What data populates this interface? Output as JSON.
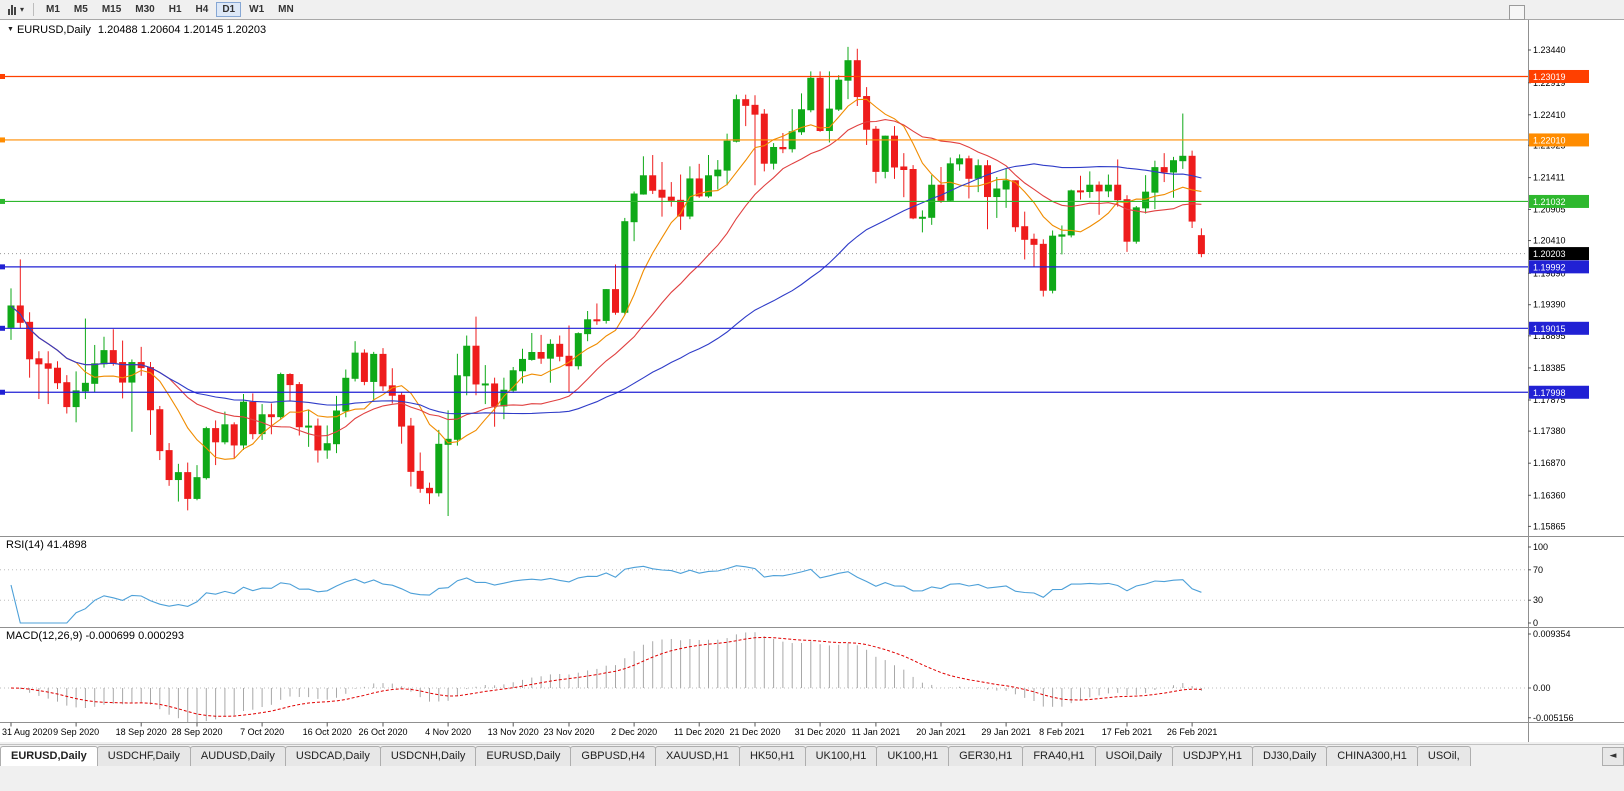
{
  "toolbar": {
    "chart_type_caret": "▾",
    "timeframes": [
      "M1",
      "M5",
      "M15",
      "M30",
      "H1",
      "H4",
      "D1",
      "W1",
      "MN"
    ],
    "active_timeframe": "D1"
  },
  "icons": {
    "title_marker": "▼",
    "tabs_scroll": "◄"
  },
  "chart": {
    "symbol_period": "EURUSD,Daily",
    "ohlc_text": "1.20488 1.20604 1.20145 1.20203",
    "colors": {
      "bull": "#0fa918",
      "bear": "#ee1c1c",
      "background": "#ffffff"
    },
    "price_axis_labels": [
      "1.23440",
      "1.22919",
      "1.22410",
      "1.21925",
      "1.21411",
      "1.20905",
      "1.20410",
      "1.19890",
      "1.19390",
      "1.18895",
      "1.18385",
      "1.17875",
      "1.17380",
      "1.16870",
      "1.16360",
      "1.15865"
    ],
    "horizontal_levels": [
      {
        "label": "1.23019",
        "color": "#ff4000"
      },
      {
        "label": "1.22010",
        "color": "#ff8c00"
      },
      {
        "label": "1.21032",
        "color": "#2eb82e"
      },
      {
        "label": "1.19992",
        "color": "#2121d4"
      },
      {
        "label": "1.19015",
        "color": "#2121d4"
      },
      {
        "label": "1.17998",
        "color": "#2121d4"
      }
    ],
    "bid": {
      "label": "1.20203",
      "color": "#000000"
    },
    "date_labels": [
      {
        "label": "31 Aug 2020",
        "index": 0
      },
      {
        "label": "9 Sep 2020",
        "index": 7
      },
      {
        "label": "18 Sep 2020",
        "index": 14
      },
      {
        "label": "28 Sep 2020",
        "index": 20
      },
      {
        "label": "7 Oct 2020",
        "index": 27
      },
      {
        "label": "16 Oct 2020",
        "index": 34
      },
      {
        "label": "26 Oct 2020",
        "index": 40
      },
      {
        "label": "4 Nov 2020",
        "index": 47
      },
      {
        "label": "13 Nov 2020",
        "index": 54
      },
      {
        "label": "23 Nov 2020",
        "index": 60
      },
      {
        "label": "2 Dec 2020",
        "index": 67
      },
      {
        "label": "11 Dec 2020",
        "index": 74
      },
      {
        "label": "21 Dec 2020",
        "index": 80
      },
      {
        "label": "31 Dec 2020",
        "index": 87
      },
      {
        "label": "11 Jan 2021",
        "index": 93
      },
      {
        "label": "20 Jan 2021",
        "index": 100
      },
      {
        "label": "29 Jan 2021",
        "index": 107
      },
      {
        "label": "8 Feb 2021",
        "index": 113
      },
      {
        "label": "17 Feb 2021",
        "index": 120
      },
      {
        "label": "26 Feb 2021",
        "index": 127
      }
    ],
    "moving_averages": [
      {
        "period": 8,
        "color": "#f08c00"
      },
      {
        "period": 18,
        "color": "#e04040"
      },
      {
        "period": 45,
        "color": "#2f3cc8"
      }
    ],
    "candles": [
      [
        1.1903,
        1.1965,
        1.1883,
        1.1937
      ],
      [
        1.1937,
        1.2011,
        1.1901,
        1.1911
      ],
      [
        1.1911,
        1.1927,
        1.1823,
        1.1853
      ],
      [
        1.1853,
        1.1865,
        1.1789,
        1.1845
      ],
      [
        1.1845,
        1.1865,
        1.1781,
        1.1838
      ],
      [
        1.1838,
        1.1849,
        1.1805,
        1.1815
      ],
      [
        1.1815,
        1.1827,
        1.1766,
        1.1777
      ],
      [
        1.1777,
        1.1833,
        1.1752,
        1.1802
      ],
      [
        1.1802,
        1.1917,
        1.1789,
        1.1814
      ],
      [
        1.1814,
        1.1875,
        1.18,
        1.1845
      ],
      [
        1.1845,
        1.1888,
        1.1839,
        1.1866
      ],
      [
        1.1866,
        1.19,
        1.1842,
        1.1847
      ],
      [
        1.1847,
        1.1882,
        1.179,
        1.1816
      ],
      [
        1.1816,
        1.1852,
        1.1737,
        1.1847
      ],
      [
        1.1847,
        1.1872,
        1.1826,
        1.1839
      ],
      [
        1.1839,
        1.1848,
        1.1732,
        1.1772
      ],
      [
        1.1772,
        1.1778,
        1.1692,
        1.1707
      ],
      [
        1.1707,
        1.1719,
        1.1651,
        1.1661
      ],
      [
        1.1661,
        1.1686,
        1.1626,
        1.1672
      ],
      [
        1.1672,
        1.1688,
        1.1612,
        1.1631
      ],
      [
        1.1631,
        1.1684,
        1.1628,
        1.1664
      ],
      [
        1.1664,
        1.1745,
        1.1661,
        1.1742
      ],
      [
        1.1742,
        1.1755,
        1.1684,
        1.1721
      ],
      [
        1.1721,
        1.1769,
        1.1717,
        1.1748
      ],
      [
        1.1748,
        1.1752,
        1.1695,
        1.1716
      ],
      [
        1.1716,
        1.1797,
        1.1708,
        1.1784
      ],
      [
        1.1784,
        1.1798,
        1.1725,
        1.1734
      ],
      [
        1.1734,
        1.1781,
        1.1724,
        1.1764
      ],
      [
        1.1764,
        1.1782,
        1.1733,
        1.1761
      ],
      [
        1.1761,
        1.1831,
        1.1756,
        1.1828
      ],
      [
        1.1828,
        1.183,
        1.1785,
        1.1812
      ],
      [
        1.1812,
        1.1816,
        1.1731,
        1.1745
      ],
      [
        1.1745,
        1.1772,
        1.1713,
        1.1746
      ],
      [
        1.1746,
        1.1758,
        1.1688,
        1.1708
      ],
      [
        1.1708,
        1.1747,
        1.1694,
        1.1718
      ],
      [
        1.1718,
        1.1794,
        1.1703,
        1.177
      ],
      [
        1.177,
        1.1836,
        1.176,
        1.1822
      ],
      [
        1.1822,
        1.1881,
        1.1817,
        1.1862
      ],
      [
        1.1862,
        1.1868,
        1.1811,
        1.1817
      ],
      [
        1.1817,
        1.1864,
        1.1786,
        1.186
      ],
      [
        1.186,
        1.187,
        1.1802,
        1.181
      ],
      [
        1.181,
        1.1838,
        1.1782,
        1.1795
      ],
      [
        1.1795,
        1.18,
        1.1718,
        1.1746
      ],
      [
        1.1746,
        1.1759,
        1.165,
        1.1674
      ],
      [
        1.1674,
        1.1704,
        1.164,
        1.1647
      ],
      [
        1.1647,
        1.1656,
        1.1622,
        1.164
      ],
      [
        1.164,
        1.174,
        1.1634,
        1.1717
      ],
      [
        1.1717,
        1.1771,
        1.1603,
        1.1725
      ],
      [
        1.1725,
        1.1861,
        1.1715,
        1.1826
      ],
      [
        1.1826,
        1.189,
        1.1795,
        1.1873
      ],
      [
        1.1873,
        1.192,
        1.1795,
        1.1813
      ],
      [
        1.1813,
        1.1843,
        1.1781,
        1.1813
      ],
      [
        1.1813,
        1.1823,
        1.1745,
        1.1778
      ],
      [
        1.1778,
        1.1823,
        1.1757,
        1.1803
      ],
      [
        1.1803,
        1.184,
        1.1799,
        1.1834
      ],
      [
        1.1834,
        1.1869,
        1.1814,
        1.1852
      ],
      [
        1.1852,
        1.1894,
        1.185,
        1.1863
      ],
      [
        1.1863,
        1.1891,
        1.1845,
        1.1854
      ],
      [
        1.1854,
        1.1884,
        1.1815,
        1.1876
      ],
      [
        1.1876,
        1.189,
        1.1849,
        1.1857
      ],
      [
        1.1857,
        1.1906,
        1.18,
        1.1842
      ],
      [
        1.1842,
        1.1895,
        1.1836,
        1.1893
      ],
      [
        1.1893,
        1.1929,
        1.1881,
        1.1915
      ],
      [
        1.1915,
        1.1941,
        1.1907,
        1.1914
      ],
      [
        1.1914,
        1.1964,
        1.1909,
        1.1963
      ],
      [
        1.1963,
        1.2003,
        1.1923,
        1.1927
      ],
      [
        1.1927,
        1.2077,
        1.1923,
        1.2071
      ],
      [
        1.2071,
        1.2119,
        1.204,
        1.2115
      ],
      [
        1.2115,
        1.2175,
        1.2114,
        1.2144
      ],
      [
        1.2144,
        1.2177,
        1.2115,
        1.2121
      ],
      [
        1.2121,
        1.2166,
        1.2079,
        1.211
      ],
      [
        1.211,
        1.2134,
        1.2095,
        1.2105
      ],
      [
        1.2105,
        1.2146,
        1.2058,
        1.208
      ],
      [
        1.208,
        1.2159,
        1.2075,
        1.2139
      ],
      [
        1.2139,
        1.2163,
        1.2109,
        1.2112
      ],
      [
        1.2112,
        1.2177,
        1.2109,
        1.2144
      ],
      [
        1.2144,
        1.2169,
        1.2122,
        1.2153
      ],
      [
        1.2153,
        1.2211,
        1.2129,
        1.2199
      ],
      [
        1.2199,
        1.2273,
        1.2197,
        1.2265
      ],
      [
        1.2265,
        1.2273,
        1.2223,
        1.2256
      ],
      [
        1.2256,
        1.2272,
        1.2129,
        1.2242
      ],
      [
        1.2242,
        1.225,
        1.2151,
        1.2164
      ],
      [
        1.2164,
        1.2196,
        1.2154,
        1.2189
      ],
      [
        1.2189,
        1.2212,
        1.218,
        1.2187
      ],
      [
        1.2187,
        1.225,
        1.2181,
        1.2214
      ],
      [
        1.2214,
        1.2275,
        1.2209,
        1.2249
      ],
      [
        1.2249,
        1.231,
        1.2245,
        1.2299
      ],
      [
        1.2299,
        1.231,
        1.2214,
        1.2216
      ],
      [
        1.2216,
        1.231,
        1.2197,
        1.225
      ],
      [
        1.225,
        1.2304,
        1.2247,
        1.2296
      ],
      [
        1.2296,
        1.2349,
        1.2266,
        1.2327
      ],
      [
        1.2327,
        1.2346,
        1.2255,
        1.227
      ],
      [
        1.227,
        1.2285,
        1.2193,
        1.2218
      ],
      [
        1.2218,
        1.2223,
        1.2132,
        1.2151
      ],
      [
        1.2151,
        1.2208,
        1.214,
        1.2207
      ],
      [
        1.2207,
        1.2223,
        1.2139,
        1.2158
      ],
      [
        1.2158,
        1.218,
        1.211,
        1.2154
      ],
      [
        1.2154,
        1.2161,
        1.2075,
        1.2077
      ],
      [
        1.2077,
        1.2089,
        1.2054,
        1.2078
      ],
      [
        1.2078,
        1.2145,
        1.2066,
        1.2129
      ],
      [
        1.2129,
        1.2158,
        1.2101,
        1.2105
      ],
      [
        1.2105,
        1.2173,
        1.2103,
        1.2163
      ],
      [
        1.2163,
        1.2178,
        1.2152,
        1.2171
      ],
      [
        1.2171,
        1.2176,
        1.2108,
        1.214
      ],
      [
        1.214,
        1.217,
        1.2118,
        1.216
      ],
      [
        1.216,
        1.2169,
        1.2059,
        1.2111
      ],
      [
        1.2111,
        1.2142,
        1.2077,
        1.2123
      ],
      [
        1.2123,
        1.2156,
        1.2093,
        1.2136
      ],
      [
        1.2136,
        1.2137,
        1.2055,
        1.2063
      ],
      [
        1.2063,
        1.2087,
        1.2011,
        1.2043
      ],
      [
        1.2043,
        1.2052,
        1.1999,
        1.2035
      ],
      [
        1.2035,
        1.2043,
        1.1952,
        1.1962
      ],
      [
        1.1962,
        1.2057,
        1.1957,
        1.2048
      ],
      [
        1.2048,
        1.2065,
        1.2019,
        1.205
      ],
      [
        1.205,
        1.2122,
        1.2046,
        1.212
      ],
      [
        1.212,
        1.2144,
        1.2106,
        1.2119
      ],
      [
        1.2119,
        1.2151,
        1.2109,
        1.2129
      ],
      [
        1.2129,
        1.2135,
        1.2082,
        1.212
      ],
      [
        1.212,
        1.2146,
        1.211,
        1.2129
      ],
      [
        1.2129,
        1.217,
        1.2095,
        1.2106
      ],
      [
        1.2106,
        1.2113,
        1.2023,
        1.204
      ],
      [
        1.204,
        1.2096,
        1.2036,
        1.2093
      ],
      [
        1.2093,
        1.2145,
        1.2084,
        1.2118
      ],
      [
        1.2118,
        1.2168,
        1.2091,
        1.2157
      ],
      [
        1.2157,
        1.218,
        1.2134,
        1.215
      ],
      [
        1.215,
        1.2174,
        1.2109,
        1.2168
      ],
      [
        1.2168,
        1.2243,
        1.2155,
        1.2175
      ],
      [
        1.2175,
        1.2184,
        1.2061,
        1.2072
      ],
      [
        1.20488,
        1.20604,
        1.20145,
        1.20203
      ]
    ]
  },
  "rsi_panel": {
    "label": "RSI(14) 41.4898",
    "period": 14,
    "line_color": "#4da0d8",
    "levels": [
      {
        "label": "100",
        "value": 100,
        "dotted": false
      },
      {
        "label": "70",
        "value": 70,
        "dotted": true
      },
      {
        "label": "30",
        "value": 30,
        "dotted": true
      },
      {
        "label": "0",
        "value": 0,
        "dotted": false
      }
    ]
  },
  "macd_panel": {
    "label": "MACD(12,26,9) -0.000699 0.000293",
    "fast": 12,
    "slow": 26,
    "signal_period": 9,
    "histogram_color": "#a8a8a8",
    "signal_color": "#e00000",
    "levels": [
      {
        "label": "0.009354",
        "value": 0.009354,
        "dotted": false
      },
      {
        "label": "0.00",
        "value": 0,
        "dotted": true
      },
      {
        "label": "-0.005156",
        "value": -0.005156,
        "dotted": false
      }
    ]
  },
  "tabs": {
    "scroll_icon": "◄",
    "items": [
      {
        "label": "EURUSD,Daily",
        "active": true
      },
      {
        "label": "USDCHF,Daily",
        "active": false
      },
      {
        "label": "AUDUSD,Daily",
        "active": false
      },
      {
        "label": "USDCAD,Daily",
        "active": false
      },
      {
        "label": "USDCNH,Daily",
        "active": false
      },
      {
        "label": "EURUSD,Daily",
        "active": false
      },
      {
        "label": "GBPUSD,H4",
        "active": false
      },
      {
        "label": "XAUUSD,H1",
        "active": false
      },
      {
        "label": "HK50,H1",
        "active": false
      },
      {
        "label": "UK100,H1",
        "active": false
      },
      {
        "label": "UK100,H1",
        "active": false
      },
      {
        "label": "GER30,H1",
        "active": false
      },
      {
        "label": "FRA40,H1",
        "active": false
      },
      {
        "label": "USOil,Daily",
        "active": false
      },
      {
        "label": "USDJPY,H1",
        "active": false
      },
      {
        "label": "DJ30,Daily",
        "active": false
      },
      {
        "label": "CHINA300,H1",
        "active": false
      },
      {
        "label": "USOil,",
        "active": false
      }
    ]
  }
}
